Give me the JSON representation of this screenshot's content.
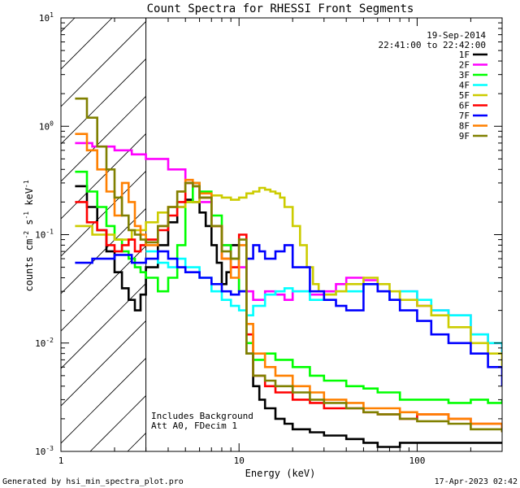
{
  "chart_data": {
    "type": "line",
    "title": "Count Spectra for RHESSI Front Segments",
    "xlabel": "Energy (keV)",
    "ylabel_parts": {
      "base": "counts cm",
      "exp1": "-2",
      "mid": " s",
      "exp2": "-1",
      "unit": " keV",
      "exp3": "-1"
    },
    "xscale": "log",
    "yscale": "log",
    "xlim": [
      1,
      300
    ],
    "ylim": [
      0.001,
      10
    ],
    "x_ticks": [
      {
        "value": 1,
        "label": "1"
      },
      {
        "value": 10,
        "label": "10"
      },
      {
        "value": 100,
        "label": "100"
      }
    ],
    "y_ticks": [
      {
        "value": 10,
        "base": "10",
        "exp": "1"
      },
      {
        "value": 1,
        "base": "10",
        "exp": "0"
      },
      {
        "value": 0.1,
        "base": "10",
        "exp": "-1"
      },
      {
        "value": 0.01,
        "base": "10",
        "exp": "-2"
      },
      {
        "value": 0.001,
        "base": "10",
        "exp": "-3"
      }
    ],
    "excluded_region_keV": [
      1,
      3
    ],
    "date": "19-Sep-2014",
    "time_range": "22:41:00 to 22:42:00",
    "annotations": [
      "Includes Background",
      "Att A0, FDecim 1"
    ],
    "legend_position": "top-right",
    "series": [
      {
        "name": "1F",
        "color": "#000000",
        "x": [
          1.2,
          1.4,
          1.6,
          1.8,
          2.0,
          2.2,
          2.4,
          2.6,
          2.8,
          3.0,
          3.5,
          4.0,
          4.5,
          5.0,
          5.5,
          6.0,
          6.5,
          7.0,
          7.5,
          8.0,
          8.5,
          9.0,
          10,
          11,
          12,
          13,
          14,
          16,
          18,
          20,
          25,
          30,
          40,
          50,
          60,
          80,
          100,
          150,
          200,
          300
        ],
        "y": [
          0.28,
          0.18,
          0.11,
          0.07,
          0.045,
          0.032,
          0.025,
          0.02,
          0.028,
          0.05,
          0.08,
          0.13,
          0.18,
          0.21,
          0.2,
          0.16,
          0.12,
          0.08,
          0.055,
          0.035,
          0.045,
          0.08,
          0.03,
          0.008,
          0.004,
          0.003,
          0.0025,
          0.002,
          0.0018,
          0.0016,
          0.0015,
          0.0014,
          0.0013,
          0.0012,
          0.0011,
          0.0012,
          0.0012,
          0.0012,
          0.0012,
          0.0012
        ]
      },
      {
        "name": "2F",
        "color": "#ff00ff",
        "x": [
          1.2,
          1.5,
          2.0,
          2.5,
          3.0,
          4.0,
          5.0,
          6.0,
          7.0,
          8.0,
          9.0,
          10,
          11,
          12,
          14,
          16,
          18,
          20,
          25,
          30,
          35,
          40,
          50,
          60,
          70,
          80,
          100,
          120,
          150,
          200,
          250,
          300
        ],
        "y": [
          0.7,
          0.65,
          0.6,
          0.55,
          0.5,
          0.4,
          0.3,
          0.2,
          0.12,
          0.08,
          0.06,
          0.05,
          0.03,
          0.025,
          0.03,
          0.028,
          0.025,
          0.03,
          0.028,
          0.03,
          0.035,
          0.04,
          0.038,
          0.03,
          0.025,
          0.03,
          0.022,
          0.02,
          0.018,
          0.012,
          0.01,
          0.008
        ]
      },
      {
        "name": "3F",
        "color": "#00ff00",
        "x": [
          1.2,
          1.4,
          1.6,
          1.8,
          2.0,
          2.2,
          2.4,
          2.6,
          2.8,
          3.0,
          3.5,
          4.0,
          4.5,
          5.0,
          5.5,
          6.0,
          7.0,
          8.0,
          9.0,
          10,
          11,
          12,
          14,
          16,
          20,
          25,
          30,
          40,
          50,
          60,
          80,
          100,
          150,
          200,
          250,
          300
        ],
        "y": [
          0.38,
          0.25,
          0.18,
          0.12,
          0.09,
          0.07,
          0.06,
          0.05,
          0.045,
          0.04,
          0.03,
          0.04,
          0.08,
          0.2,
          0.3,
          0.25,
          0.15,
          0.08,
          0.06,
          0.03,
          0.01,
          0.007,
          0.008,
          0.007,
          0.006,
          0.005,
          0.0045,
          0.004,
          0.0038,
          0.0035,
          0.003,
          0.003,
          0.0028,
          0.003,
          0.0028,
          0.003
        ]
      },
      {
        "name": "4F",
        "color": "#00ffff",
        "x": [
          3.0,
          3.5,
          4.0,
          4.5,
          5.0,
          6.0,
          7.0,
          8.0,
          9.0,
          10,
          11,
          12,
          14,
          16,
          18,
          20,
          25,
          30,
          35,
          40,
          50,
          60,
          70,
          80,
          100,
          120,
          150,
          200,
          250,
          300
        ],
        "y": [
          0.07,
          0.055,
          0.05,
          0.06,
          0.05,
          0.04,
          0.03,
          0.025,
          0.022,
          0.02,
          0.018,
          0.022,
          0.028,
          0.03,
          0.032,
          0.03,
          0.025,
          0.028,
          0.03,
          0.03,
          0.035,
          0.03,
          0.025,
          0.03,
          0.025,
          0.02,
          0.018,
          0.012,
          0.01,
          0.008
        ]
      },
      {
        "name": "5F",
        "color": "#cccc00",
        "x": [
          1.2,
          1.5,
          2.0,
          2.5,
          3.0,
          3.5,
          4.0,
          5.0,
          6.0,
          7.0,
          8.0,
          9.0,
          10,
          11,
          12,
          13,
          14,
          15,
          16,
          17,
          18,
          20,
          22,
          24,
          26,
          28,
          30,
          35,
          40,
          50,
          60,
          70,
          80,
          100,
          120,
          150,
          200,
          250,
          300
        ],
        "y": [
          0.12,
          0.1,
          0.09,
          0.11,
          0.13,
          0.16,
          0.18,
          0.2,
          0.22,
          0.23,
          0.22,
          0.21,
          0.22,
          0.24,
          0.25,
          0.27,
          0.26,
          0.25,
          0.24,
          0.22,
          0.18,
          0.12,
          0.08,
          0.05,
          0.035,
          0.03,
          0.028,
          0.03,
          0.035,
          0.04,
          0.035,
          0.03,
          0.025,
          0.022,
          0.018,
          0.014,
          0.01,
          0.008,
          0.006
        ]
      },
      {
        "name": "6F",
        "color": "#ff0000",
        "x": [
          1.2,
          1.4,
          1.6,
          1.8,
          2.0,
          2.2,
          2.4,
          2.6,
          2.8,
          3.0,
          3.5,
          4.0,
          4.5,
          5.0,
          5.5,
          6.0,
          7.0,
          8.0,
          9.0,
          10,
          11,
          12,
          14,
          16,
          20,
          25,
          30,
          40,
          50,
          60,
          80,
          100,
          150,
          200,
          300
        ],
        "y": [
          0.2,
          0.13,
          0.11,
          0.08,
          0.07,
          0.08,
          0.09,
          0.07,
          0.08,
          0.09,
          0.11,
          0.15,
          0.2,
          0.3,
          0.28,
          0.22,
          0.12,
          0.06,
          0.05,
          0.1,
          0.012,
          0.005,
          0.004,
          0.0035,
          0.003,
          0.0028,
          0.0025,
          0.0025,
          0.0023,
          0.0022,
          0.002,
          0.0022,
          0.002,
          0.0018,
          0.0015
        ]
      },
      {
        "name": "7F",
        "color": "#0000ff",
        "x": [
          1.2,
          1.5,
          2.0,
          2.5,
          3.0,
          3.5,
          4.0,
          4.5,
          5.0,
          6.0,
          7.0,
          8.0,
          9.0,
          10,
          11,
          12,
          13,
          14,
          16,
          18,
          20,
          25,
          30,
          35,
          40,
          50,
          60,
          70,
          80,
          100,
          120,
          150,
          200,
          250,
          300
        ],
        "y": [
          0.055,
          0.06,
          0.065,
          0.055,
          0.06,
          0.07,
          0.06,
          0.05,
          0.045,
          0.04,
          0.035,
          0.03,
          0.028,
          0.03,
          0.06,
          0.08,
          0.07,
          0.06,
          0.07,
          0.08,
          0.05,
          0.03,
          0.025,
          0.022,
          0.02,
          0.035,
          0.03,
          0.025,
          0.02,
          0.016,
          0.012,
          0.01,
          0.008,
          0.006,
          0.004
        ]
      },
      {
        "name": "8F",
        "color": "#ff8000",
        "x": [
          1.2,
          1.4,
          1.6,
          1.8,
          2.0,
          2.2,
          2.4,
          2.6,
          2.8,
          3.0,
          3.5,
          4.0,
          4.5,
          5.0,
          5.5,
          6.0,
          7.0,
          8.0,
          9.0,
          10,
          11,
          12,
          14,
          16,
          20,
          25,
          30,
          40,
          50,
          60,
          80,
          100,
          150,
          200,
          300
        ],
        "y": [
          0.85,
          0.6,
          0.4,
          0.25,
          0.15,
          0.3,
          0.2,
          0.12,
          0.1,
          0.08,
          0.12,
          0.18,
          0.25,
          0.32,
          0.3,
          0.24,
          0.12,
          0.06,
          0.04,
          0.08,
          0.015,
          0.008,
          0.006,
          0.005,
          0.004,
          0.0035,
          0.003,
          0.0028,
          0.0025,
          0.0025,
          0.0023,
          0.0022,
          0.002,
          0.0018,
          0.0015
        ]
      },
      {
        "name": "9F",
        "color": "#808000",
        "x": [
          1.2,
          1.4,
          1.6,
          1.8,
          2.0,
          2.2,
          2.4,
          2.6,
          2.8,
          3.0,
          3.5,
          4.0,
          4.5,
          5.0,
          5.5,
          6.0,
          7.0,
          8.0,
          9.0,
          10,
          11,
          12,
          14,
          16,
          20,
          25,
          30,
          40,
          50,
          60,
          80,
          100,
          150,
          200,
          300
        ],
        "y": [
          1.8,
          1.2,
          0.65,
          0.4,
          0.22,
          0.15,
          0.11,
          0.1,
          0.09,
          0.085,
          0.12,
          0.18,
          0.25,
          0.3,
          0.28,
          0.22,
          0.12,
          0.07,
          0.06,
          0.09,
          0.008,
          0.005,
          0.0045,
          0.004,
          0.0035,
          0.003,
          0.0028,
          0.0025,
          0.0023,
          0.0022,
          0.002,
          0.0019,
          0.0018,
          0.0016,
          0.0015
        ]
      }
    ]
  },
  "footer": {
    "generator": "Generated by hsi_min_spectra_plot.pro",
    "timestamp": "17-Apr-2023 02:42"
  }
}
